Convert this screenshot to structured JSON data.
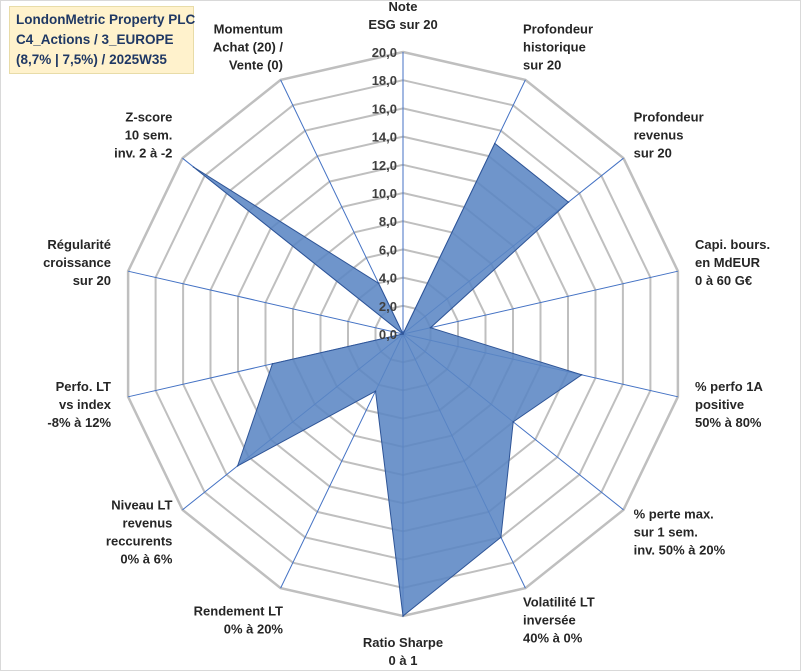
{
  "title": {
    "line1": "LondonMetric Property PLC",
    "line2": "C4_Actions / 3_EUROPE",
    "line3": "(8,7% | 7,5%) / 2025W35"
  },
  "colors": {
    "series_fill": "#5b86c4",
    "series_stroke": "#2f5597",
    "grid": "#bfbfbf",
    "spoke": "#4472c4",
    "title_bg": "#fff2cc",
    "title_text": "#1f3864"
  },
  "chart_data": {
    "type": "radar",
    "rmin": 0,
    "rmax": 20,
    "tick_step": 2,
    "ticks": [
      "0,0",
      "2,0",
      "4,0",
      "6,0",
      "8,0",
      "10,0",
      "12,0",
      "14,0",
      "16,0",
      "18,0",
      "20,0"
    ],
    "grid": true,
    "categories": [
      [
        "Note",
        "ESG sur 20"
      ],
      [
        "Profondeur",
        "historique",
        "sur 20"
      ],
      [
        "Profondeur",
        "revenus",
        "sur 20"
      ],
      [
        "Capi. bours.",
        "en MdEUR",
        "0 à 60 G€"
      ],
      [
        "% perfo 1A",
        "positive",
        "50% à 80%"
      ],
      [
        "% perte max.",
        "sur 1 sem.",
        "inv. 50% à 20%"
      ],
      [
        "Volatilité LT",
        "inversée",
        "40% à 0%"
      ],
      [
        "Ratio Sharpe",
        "0 à 1"
      ],
      [
        "Rendement LT",
        "0% à 20%"
      ],
      [
        "Niveau LT",
        "revenus",
        "reccurents",
        "0% à 6%"
      ],
      [
        "Perfo. LT",
        "vs index",
        "-8% à 12%"
      ],
      [
        "Régularité",
        "croissance",
        "sur 20"
      ],
      [
        "Z-score",
        "10 sem.",
        "inv. 2 à -2"
      ],
      [
        "Momentum",
        "Achat (20) /",
        "Vente (0)"
      ]
    ],
    "series": [
      {
        "values": [
          0,
          15,
          15,
          2,
          13,
          10,
          16,
          20,
          4.5,
          15,
          9.5,
          0,
          19,
          4
        ]
      }
    ]
  }
}
